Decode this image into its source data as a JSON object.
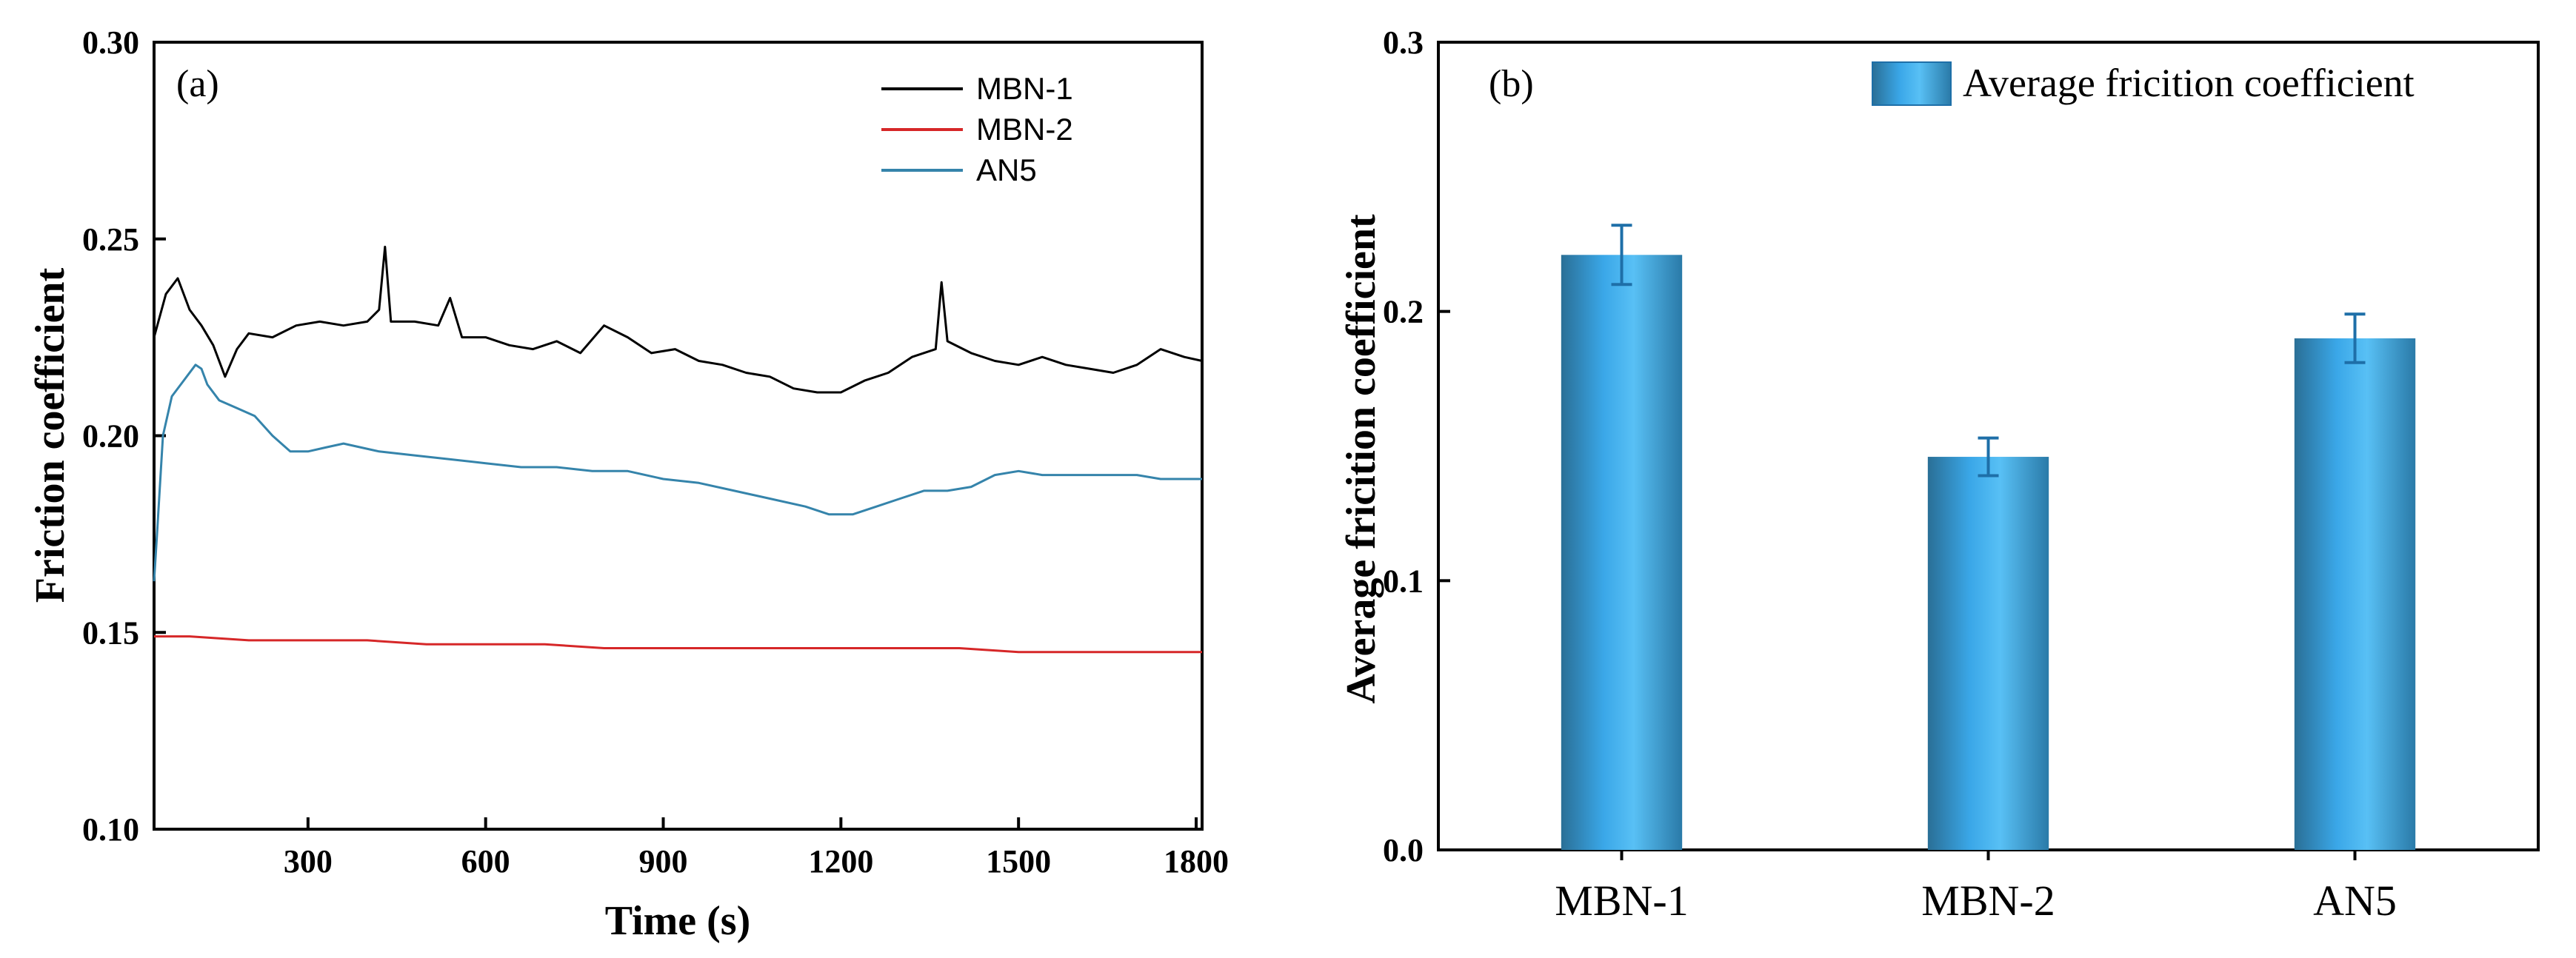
{
  "chart_data": [
    {
      "type": "line",
      "panel_label": "(a)",
      "xlabel": "Time (s)",
      "ylabel": "Friction coefficient",
      "xlim": [
        40,
        1810
      ],
      "ylim": [
        0.1,
        0.3
      ],
      "xticks": [
        300,
        600,
        900,
        1200,
        1500,
        1800
      ],
      "yticks": [
        0.1,
        0.15,
        0.2,
        0.25,
        0.3
      ],
      "xtick_labels": [
        "300",
        "600",
        "900",
        "1200",
        "1500",
        "1800"
      ],
      "ytick_labels": [
        "0.10",
        "0.15",
        "0.20",
        "0.25",
        "0.30"
      ],
      "legend": {
        "position": "top-right",
        "entries": [
          "MBN-1",
          "MBN-2",
          "AN5"
        ]
      },
      "series": [
        {
          "name": "MBN-1",
          "color": "#000000",
          "x": [
            40,
            60,
            80,
            100,
            120,
            140,
            160,
            180,
            200,
            240,
            280,
            320,
            360,
            400,
            420,
            430,
            440,
            480,
            520,
            540,
            560,
            600,
            640,
            680,
            720,
            760,
            800,
            840,
            880,
            920,
            960,
            1000,
            1040,
            1080,
            1120,
            1160,
            1200,
            1240,
            1280,
            1320,
            1360,
            1370,
            1380,
            1420,
            1460,
            1500,
            1540,
            1580,
            1620,
            1660,
            1700,
            1740,
            1780,
            1810
          ],
          "y": [
            0.225,
            0.236,
            0.24,
            0.232,
            0.228,
            0.223,
            0.215,
            0.222,
            0.226,
            0.225,
            0.228,
            0.229,
            0.228,
            0.229,
            0.232,
            0.248,
            0.229,
            0.229,
            0.228,
            0.235,
            0.225,
            0.225,
            0.223,
            0.222,
            0.224,
            0.221,
            0.228,
            0.225,
            0.221,
            0.222,
            0.219,
            0.218,
            0.216,
            0.215,
            0.212,
            0.211,
            0.211,
            0.214,
            0.216,
            0.22,
            0.222,
            0.239,
            0.224,
            0.221,
            0.219,
            0.218,
            0.22,
            0.218,
            0.217,
            0.216,
            0.218,
            0.222,
            0.22,
            0.219
          ]
        },
        {
          "name": "MBN-2",
          "color": "#d62728",
          "x": [
            40,
            100,
            200,
            300,
            400,
            500,
            600,
            700,
            800,
            900,
            1000,
            1100,
            1200,
            1300,
            1400,
            1500,
            1600,
            1700,
            1810
          ],
          "y": [
            0.149,
            0.149,
            0.148,
            0.148,
            0.148,
            0.147,
            0.147,
            0.147,
            0.146,
            0.146,
            0.146,
            0.146,
            0.146,
            0.146,
            0.146,
            0.145,
            0.145,
            0.145,
            0.145
          ]
        },
        {
          "name": "AN5",
          "color": "#3584ab",
          "x": [
            40,
            45,
            55,
            70,
            90,
            110,
            120,
            130,
            150,
            180,
            210,
            240,
            270,
            300,
            330,
            360,
            420,
            480,
            540,
            600,
            660,
            720,
            780,
            840,
            900,
            960,
            1020,
            1080,
            1140,
            1180,
            1220,
            1260,
            1300,
            1340,
            1380,
            1420,
            1460,
            1500,
            1540,
            1580,
            1620,
            1660,
            1700,
            1740,
            1780,
            1810
          ],
          "y": [
            0.163,
            0.175,
            0.2,
            0.21,
            0.214,
            0.218,
            0.217,
            0.213,
            0.209,
            0.207,
            0.205,
            0.2,
            0.196,
            0.196,
            0.197,
            0.198,
            0.196,
            0.195,
            0.194,
            0.193,
            0.192,
            0.192,
            0.191,
            0.191,
            0.189,
            0.188,
            0.186,
            0.184,
            0.182,
            0.18,
            0.18,
            0.182,
            0.184,
            0.186,
            0.186,
            0.187,
            0.19,
            0.191,
            0.19,
            0.19,
            0.19,
            0.19,
            0.19,
            0.189,
            0.189,
            0.189
          ]
        }
      ]
    },
    {
      "type": "bar",
      "panel_label": "(b)",
      "categories": [
        "MBN-1",
        "MBN-2",
        "AN5"
      ],
      "values": [
        0.221,
        0.146,
        0.19
      ],
      "errors": [
        0.011,
        0.007,
        0.009
      ],
      "ylabel": "Average fricition coefficient",
      "xlabel": "",
      "ylim": [
        0.0,
        0.3
      ],
      "yticks": [
        0.0,
        0.1,
        0.2,
        0.3
      ],
      "ytick_labels": [
        "0.0",
        "0.1",
        "0.2",
        "0.3"
      ],
      "legend": {
        "position": "top-right",
        "entries": [
          "Average fricition coefficient"
        ]
      },
      "bar_color": "#3aa7e8",
      "error_color": "#1e6fa8"
    }
  ]
}
